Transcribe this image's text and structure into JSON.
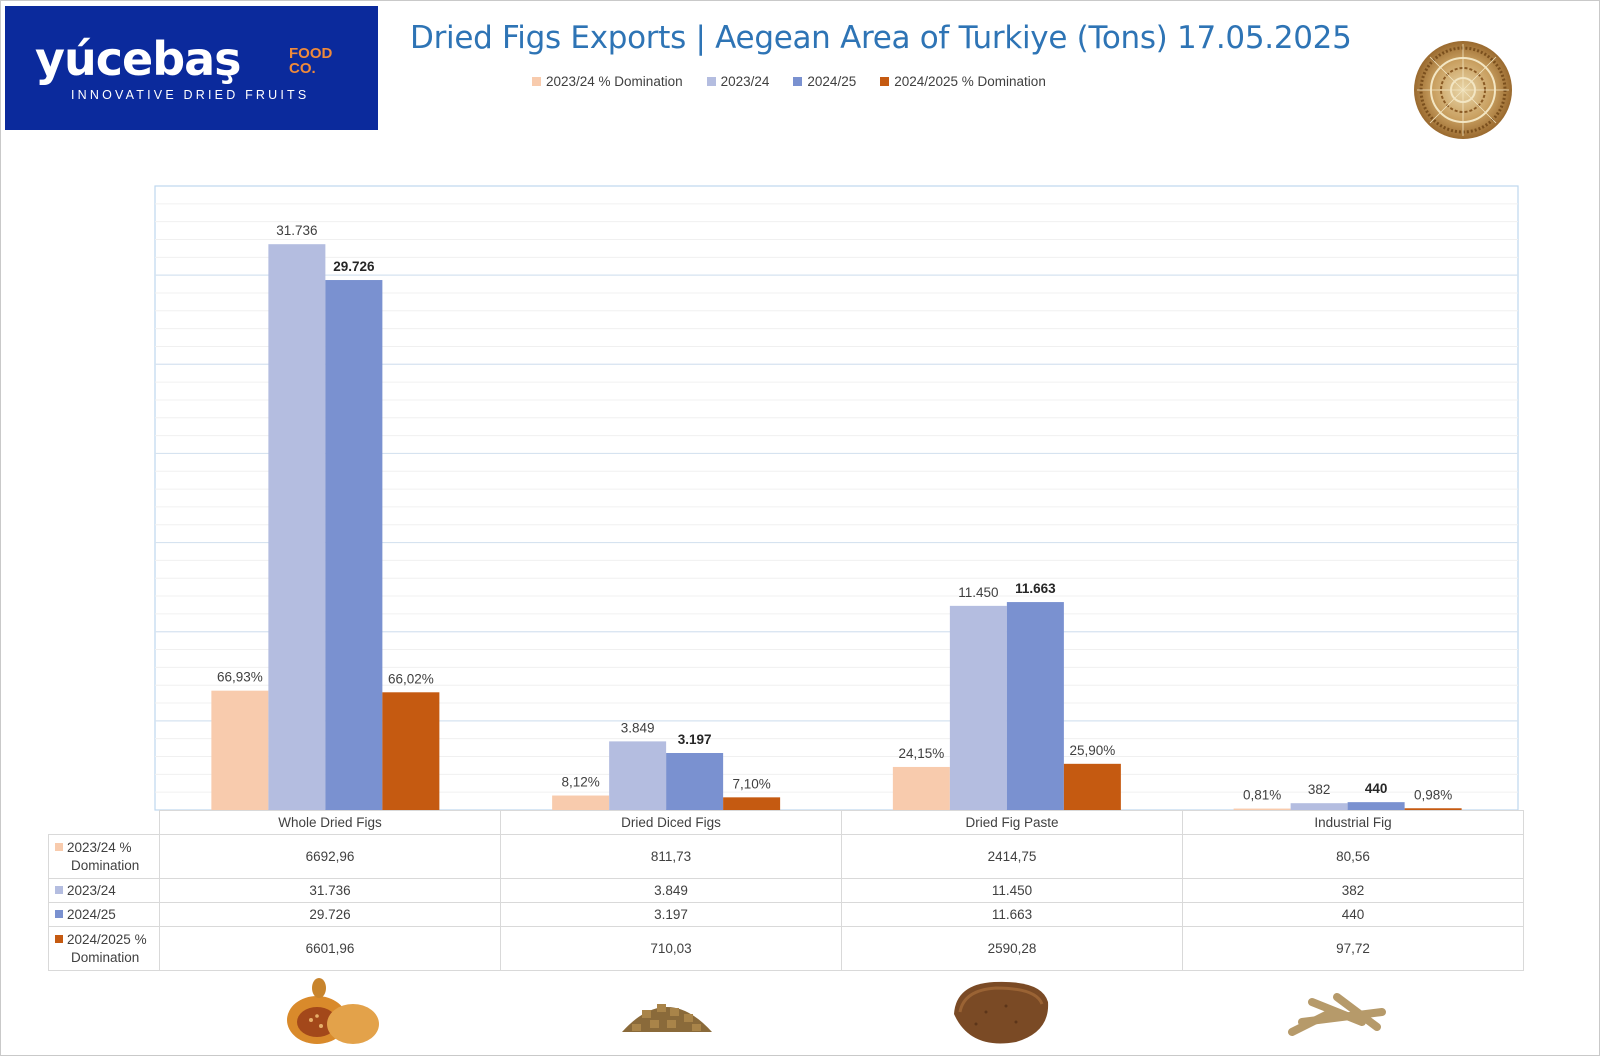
{
  "logo": {
    "brand": "yúcebaş",
    "food_line1": "FOOD",
    "food_line2": "CO.",
    "tagline": "INNOVATIVE DRIED FRUITS"
  },
  "header": {
    "title": "Dried Figs Exports | Aegean Area of Turkiye (Tons) 17.05.2025"
  },
  "legend": [
    {
      "label": "2023/24  % Domination",
      "color": "#f8cbad"
    },
    {
      "label": "2023/24",
      "color": "#b4bde0"
    },
    {
      "label": "2024/25",
      "color": "#7a91d0"
    },
    {
      "label": "2024/2025 % Domination",
      "color": "#c55a11"
    }
  ],
  "chart_data": {
    "type": "bar",
    "title": "Dried Figs Exports | Aegean Area of Turkiye (Tons) 17.05.2025",
    "categories": [
      "Whole Dried Figs",
      "Dried Diced Figs",
      "Dried Fig Paste",
      "Industrial Fig"
    ],
    "series": [
      {
        "name": "2023/24  % Domination",
        "color": "#f8cbad",
        "values": [
          6692.96,
          811.73,
          2414.75,
          80.56
        ],
        "data_labels": [
          "66,93%",
          "8,12%",
          "24,15%",
          "0,81%"
        ],
        "table_values": [
          "6692,96",
          "811,73",
          "2414,75",
          "80,56"
        ],
        "bold_labels": false
      },
      {
        "name": "2023/24",
        "color": "#b4bde0",
        "values": [
          31736,
          3849,
          11450,
          382
        ],
        "data_labels": [
          "31.736",
          "3.849",
          "11.450",
          "382"
        ],
        "table_values": [
          "31.736",
          "3.849",
          "11.450",
          "382"
        ],
        "bold_labels": false
      },
      {
        "name": "2024/25",
        "color": "#7a91d0",
        "values": [
          29726,
          3197,
          11663,
          440
        ],
        "data_labels": [
          "29.726",
          "3.197",
          "11.663",
          "440"
        ],
        "table_values": [
          "29.726",
          "3.197",
          "11.663",
          "440"
        ],
        "bold_labels": true
      },
      {
        "name": "2024/2025 % Domination",
        "color": "#c55a11",
        "values": [
          6601.96,
          710.03,
          2590.28,
          97.72
        ],
        "data_labels": [
          "66,02%",
          "7,10%",
          "25,90%",
          "0,98%"
        ],
        "table_values": [
          "6601,96",
          "710,03",
          "2590,28",
          "97,72"
        ],
        "bold_labels": false
      }
    ],
    "ylim": [
      0,
      35000
    ],
    "grid": true,
    "legend_position": "top"
  },
  "table": {
    "row_labels": [
      [
        "2023/24  %",
        "Domination"
      ],
      [
        "2023/24"
      ],
      [
        "2024/25"
      ],
      [
        "2024/2025 %",
        "Domination"
      ]
    ]
  },
  "images": [
    {
      "name": "whole-dried-figs-image"
    },
    {
      "name": "dried-diced-figs-image"
    },
    {
      "name": "dried-fig-paste-image"
    },
    {
      "name": "industrial-fig-image"
    }
  ]
}
